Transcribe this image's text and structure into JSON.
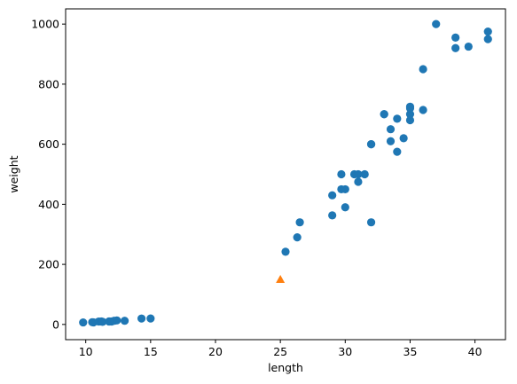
{
  "chart_data": {
    "type": "scatter",
    "title": "",
    "xlabel": "length",
    "ylabel": "weight",
    "xlim": [
      8.45,
      42.35
    ],
    "ylim": [
      -50.67,
      1050.67
    ],
    "xticks": [
      10,
      15,
      20,
      25,
      30,
      35,
      40
    ],
    "yticks": [
      0,
      200,
      400,
      600,
      800,
      1000
    ],
    "grid": false,
    "series": [
      {
        "marker": "circle",
        "color": "#1f77b4",
        "points": [
          [
            9.8,
            6.7
          ],
          [
            10.5,
            7.5
          ],
          [
            10.6,
            7.0
          ],
          [
            11.0,
            9.7
          ],
          [
            11.2,
            9.8
          ],
          [
            11.3,
            8.7
          ],
          [
            11.8,
            10.0
          ],
          [
            11.8,
            9.9
          ],
          [
            12.0,
            9.8
          ],
          [
            12.2,
            12.2
          ],
          [
            12.4,
            13.4
          ],
          [
            13.0,
            12.2
          ],
          [
            14.3,
            19.7
          ],
          [
            15.0,
            19.9
          ],
          [
            25.4,
            242.0
          ],
          [
            26.3,
            290.0
          ],
          [
            26.5,
            340.0
          ],
          [
            29.0,
            363.0
          ],
          [
            29.0,
            430.0
          ],
          [
            29.7,
            450.0
          ],
          [
            29.7,
            500.0
          ],
          [
            30.0,
            390.0
          ],
          [
            30.0,
            450.0
          ],
          [
            30.7,
            500.0
          ],
          [
            31.0,
            475.0
          ],
          [
            31.0,
            500.0
          ],
          [
            31.5,
            500.0
          ],
          [
            32.0,
            340.0
          ],
          [
            32.0,
            600.0
          ],
          [
            32.0,
            600.0
          ],
          [
            33.0,
            700.0
          ],
          [
            33.0,
            700.0
          ],
          [
            33.5,
            610.0
          ],
          [
            33.5,
            650.0
          ],
          [
            34.0,
            575.0
          ],
          [
            34.0,
            685.0
          ],
          [
            34.5,
            620.0
          ],
          [
            35.0,
            680.0
          ],
          [
            35.0,
            700.0
          ],
          [
            35.0,
            725.0
          ],
          [
            35.0,
            720.0
          ],
          [
            36.0,
            714.0
          ],
          [
            36.0,
            850.0
          ],
          [
            37.0,
            1000.0
          ],
          [
            38.5,
            920.0
          ],
          [
            38.5,
            955.0
          ],
          [
            39.5,
            925.0
          ],
          [
            41.0,
            975.0
          ],
          [
            41.0,
            950.0
          ]
        ]
      },
      {
        "marker": "triangle",
        "color": "#ff7f0e",
        "points": [
          [
            25.0,
            150.0
          ]
        ]
      }
    ]
  }
}
